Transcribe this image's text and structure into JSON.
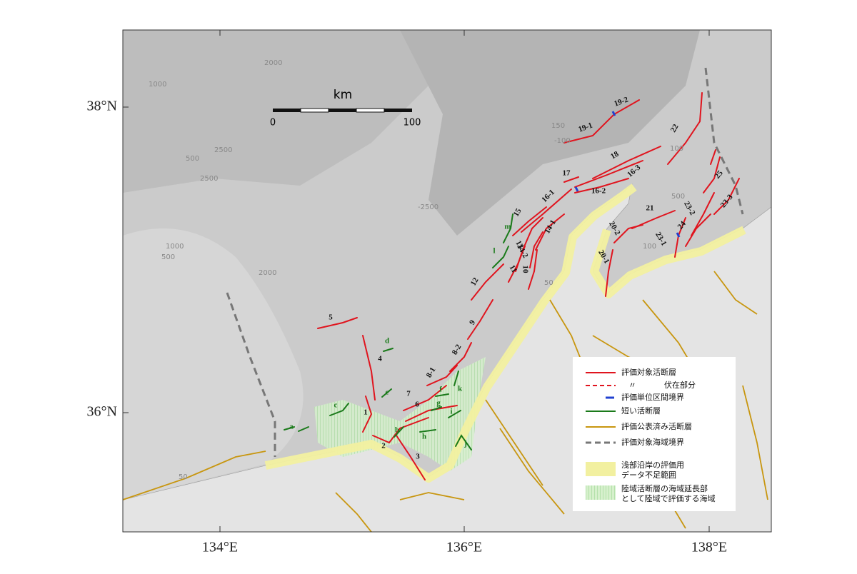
{
  "map": {
    "axes": {
      "lat_labels": [
        "38°N",
        "36°N"
      ],
      "lon_labels": [
        "134°E",
        "136°E",
        "138°E"
      ]
    },
    "scale_bar": {
      "unit": "km",
      "start": "0",
      "end": "100"
    },
    "contour_labels": [
      "2000",
      "1000",
      "2500",
      "2500",
      "1000",
      "500",
      "2000",
      "-2500",
      "150",
      "-100",
      "100",
      "500",
      "50",
      "100",
      "50",
      "500"
    ],
    "fault_labels": [
      "1",
      "2",
      "3",
      "4",
      "5",
      "6",
      "7",
      "8-1",
      "8-2",
      "9",
      "10",
      "11",
      "12",
      "13",
      "14-1",
      "14-2",
      "15",
      "16-1",
      "16-2",
      "16-3",
      "17",
      "18",
      "19-1",
      "19-2",
      "20-1",
      "20-2",
      "21",
      "22",
      "23-1",
      "23-2",
      "23-3",
      "24",
      "25"
    ],
    "short_fault_labels": [
      "a",
      "b",
      "c",
      "d",
      "e",
      "f",
      "g",
      "h",
      "i",
      "j",
      "k",
      "l",
      "m"
    ],
    "legend": [
      {
        "label": "評価対象活断層"
      },
      {
        "ditto": "〃",
        "label": "伏在部分"
      },
      {
        "label": "評価単位区間境界"
      },
      {
        "label": "短い活断層"
      },
      {
        "label": "評価公表済み活断層"
      },
      {
        "label": "評価対象海域境界"
      },
      {
        "lines": [
          "浅部沿岸の評価用",
          "データ不足範囲"
        ]
      },
      {
        "lines": [
          "陸域活断層の海域延長部",
          "として陸域で評価する海域"
        ]
      }
    ]
  }
}
